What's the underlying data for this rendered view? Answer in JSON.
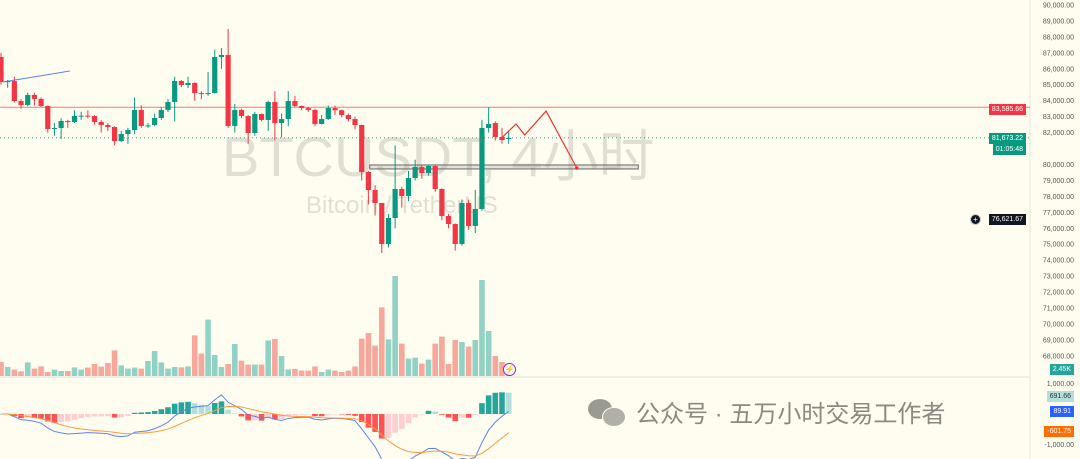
{
  "symbol_watermark": "BTCUSDT, 4小时",
  "name_watermark": "Bitcoin / TetherUS",
  "wechat_text": "公众号 · 五万小时交易工作者",
  "colors": {
    "up": "#089981",
    "down": "#f23645",
    "up_vol": "#92d2c4",
    "down_vol": "#f7a79c",
    "macd": "#5b86ef",
    "signal": "#ff9a3c",
    "hist_up": "#26a69a",
    "hist_up_light": "#b2dfdb",
    "hist_down": "#ff5252",
    "hist_down_light": "#ffcdd2",
    "background": "#fffdef"
  },
  "price_axis": {
    "labels": [
      "90,000.00",
      "89,000.00",
      "88,000.00",
      "87,000.00",
      "86,000.00",
      "85,000.00",
      "84,000.00",
      "83,000.00",
      "82,000.00",
      "80,000.00",
      "79,000.00",
      "78,000.00",
      "77,000.00",
      "76,000.00",
      "75,000.00",
      "74,000.00",
      "73,000.00",
      "72,000.00",
      "71,000.00",
      "70,000.00",
      "69,000.00",
      "68,000.00"
    ]
  },
  "macd_axis": {
    "labels": [
      "1,000.00",
      "-1,000.00"
    ]
  },
  "tags": {
    "resistance": "83,585.66",
    "last_price": "81,673.22",
    "countdown": "01:05:48",
    "crosshair_price": "76,621.67",
    "volume": "2.45K",
    "histogram": "691.66",
    "macd": "89.91",
    "signal": "-601.75"
  },
  "chart_data": {
    "type": "candlestick",
    "timeframe": "4小时",
    "ylim": [
      68000,
      90000
    ],
    "macd_ylim": [
      -1000,
      1000
    ],
    "ohlc": [
      [
        86740,
        87000,
        85000,
        85170
      ],
      [
        85170,
        85300,
        84800,
        85230
      ],
      [
        85230,
        85500,
        83900,
        83980
      ],
      [
        83980,
        84100,
        83500,
        83730
      ],
      [
        83730,
        84500,
        83650,
        84360
      ],
      [
        84360,
        84500,
        83700,
        84110
      ],
      [
        84110,
        84200,
        83600,
        83670
      ],
      [
        83670,
        83700,
        82000,
        82225
      ],
      [
        82225,
        82600,
        81800,
        82290
      ],
      [
        82290,
        82900,
        81600,
        82730
      ],
      [
        82730,
        82800,
        82300,
        82660
      ],
      [
        82660,
        83400,
        82600,
        83040
      ],
      [
        83040,
        83300,
        82800,
        83060
      ],
      [
        83060,
        83400,
        82900,
        83040
      ],
      [
        83040,
        83100,
        82500,
        82665
      ],
      [
        82665,
        82800,
        82000,
        82475
      ],
      [
        82475,
        82600,
        82100,
        82350
      ],
      [
        82350,
        82400,
        81200,
        81470
      ],
      [
        81470,
        82100,
        81400,
        81910
      ],
      [
        81910,
        82300,
        81300,
        82160
      ],
      [
        82160,
        84200,
        81900,
        83420
      ],
      [
        83420,
        83700,
        82300,
        82415
      ],
      [
        82415,
        82600,
        82300,
        82450
      ],
      [
        82475,
        83200,
        82400,
        82915
      ],
      [
        82915,
        83600,
        82800,
        83420
      ],
      [
        83420,
        84100,
        83300,
        83920
      ],
      [
        83920,
        85500,
        82700,
        85235
      ],
      [
        85235,
        85300,
        84850,
        84985
      ],
      [
        84985,
        85500,
        84800,
        85110
      ],
      [
        85110,
        85150,
        84000,
        84480
      ],
      [
        84480,
        84600,
        84100,
        84420
      ],
      [
        84420,
        85800,
        84300,
        84480
      ],
      [
        84480,
        87200,
        84450,
        86740
      ],
      [
        86740,
        87300,
        86000,
        86865
      ],
      [
        86865,
        88500,
        82300,
        82415
      ],
      [
        82415,
        83800,
        82000,
        83420
      ],
      [
        83420,
        83500,
        82900,
        83040
      ],
      [
        83040,
        83100,
        81300,
        81975
      ],
      [
        81975,
        83300,
        81800,
        83165
      ],
      [
        83165,
        83200,
        82700,
        82790
      ],
      [
        82790,
        84000,
        82100,
        83920
      ],
      [
        83920,
        84600,
        81500,
        82600
      ],
      [
        82600,
        83200,
        81700,
        82850
      ],
      [
        82850,
        84600,
        82400,
        83980
      ],
      [
        83980,
        84300,
        83600,
        83670
      ],
      [
        83670,
        83700,
        83400,
        83540
      ],
      [
        83540,
        83600,
        83300,
        83420
      ],
      [
        83420,
        83500,
        82400,
        82540
      ],
      [
        82540,
        83100,
        82500,
        82850
      ],
      [
        82850,
        83700,
        82800,
        83540
      ],
      [
        83540,
        83700,
        83100,
        83400
      ],
      [
        83400,
        83450,
        82950,
        83100
      ],
      [
        83100,
        83200,
        82700,
        82850
      ],
      [
        82850,
        83000,
        82200,
        82475
      ],
      [
        82475,
        82500,
        79000,
        79530
      ],
      [
        79530,
        79600,
        77500,
        78400
      ],
      [
        78400,
        78700,
        76800,
        77585
      ],
      [
        77585,
        77600,
        74450,
        75015
      ],
      [
        75015,
        76900,
        74800,
        76645
      ],
      [
        76645,
        81200,
        76000,
        78465
      ],
      [
        78465,
        78600,
        77300,
        78025
      ],
      [
        78025,
        79600,
        77700,
        79150
      ],
      [
        79150,
        80300,
        79000,
        79840
      ],
      [
        79840,
        80000,
        79100,
        79465
      ],
      [
        79465,
        80000,
        79300,
        79905
      ],
      [
        79905,
        80000,
        78300,
        78465
      ],
      [
        78465,
        78500,
        76500,
        76770
      ],
      [
        76770,
        76900,
        76000,
        76270
      ],
      [
        76270,
        76300,
        74600,
        75015
      ],
      [
        75015,
        77800,
        74900,
        77585
      ],
      [
        77585,
        77800,
        75900,
        76145
      ],
      [
        76145,
        78400,
        75700,
        77210
      ],
      [
        77210,
        82800,
        77100,
        82290
      ],
      [
        82290,
        83585,
        82000,
        82540
      ],
      [
        82600,
        82700,
        81500,
        81725
      ],
      [
        81725,
        82300,
        81300,
        81535
      ],
      [
        81600,
        82100,
        81300,
        81673
      ]
    ],
    "volume_k": [
      7,
      4.5,
      3.2,
      2.3,
      6.8,
      3.7,
      4.8,
      2,
      3.2,
      2.5,
      2.5,
      4.3,
      3.2,
      4.2,
      6,
      4.7,
      6.5,
      12.8,
      5.3,
      3.7,
      4.2,
      3.7,
      7.5,
      12.5,
      6.8,
      3.7,
      4.5,
      4.3,
      4.8,
      20.3,
      11.2,
      28.2,
      10.5,
      4.5,
      6,
      16,
      7.7,
      5.7,
      5.7,
      5.7,
      17.8,
      18.5,
      10,
      3.3,
      3.5,
      2.7,
      2.7,
      4.8,
      2,
      3.2,
      2.7,
      2,
      2.7,
      4.8,
      18.7,
      21.5,
      15.2,
      34.3,
      18.3,
      50,
      16.2,
      8.7,
      9.2,
      6.2,
      8.2,
      16.2,
      19.7,
      6,
      18,
      17,
      14.7,
      18,
      48,
      22.5,
      10,
      7,
      2.45
    ],
    "drawings": {
      "resistance_line": 83585.66,
      "trendline": [
        [
          0.3,
          85170
        ],
        [
          10.3,
          85860
        ]
      ],
      "support_zone": {
        "from_bar": 55.2,
        "to_bar": 95.4,
        "top": 79970,
        "bottom": 79720
      },
      "projection_path": [
        [
          75.1,
          81725
        ],
        [
          77.1,
          82540
        ],
        [
          78.4,
          81850
        ],
        [
          81.6,
          83350
        ],
        [
          86.2,
          79780
        ]
      ]
    }
  }
}
